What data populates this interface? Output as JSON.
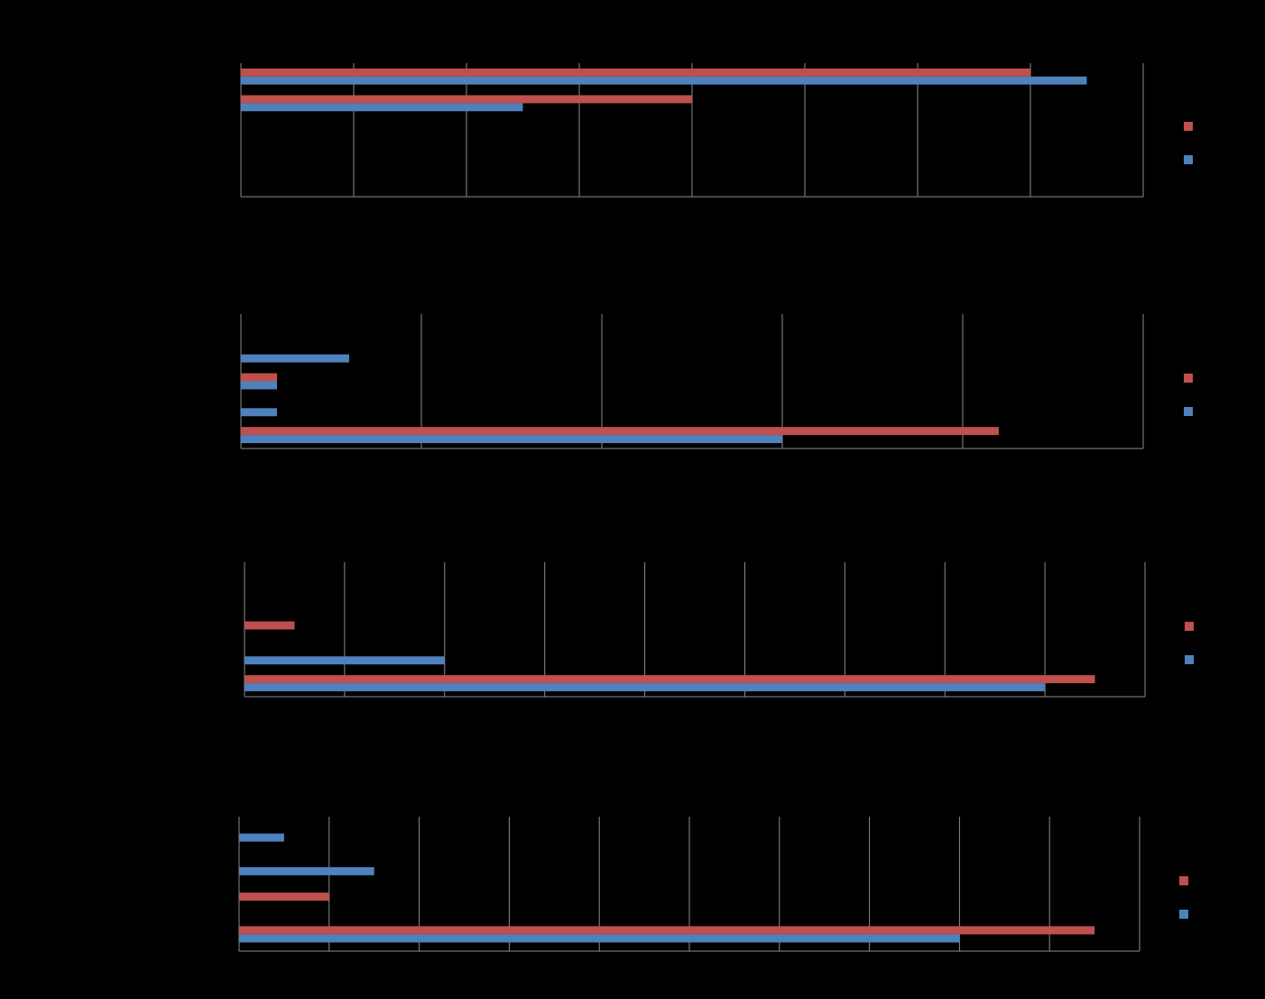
{
  "chart_data": [
    {
      "type": "barh",
      "categories": [
        null,
        null,
        null,
        null,
        null
      ],
      "grid": true,
      "xlim": [
        0,
        8
      ],
      "xticks": [
        0,
        1,
        2,
        3,
        4,
        5,
        6,
        7,
        8
      ],
      "series": [
        {
          "color": "#c0504d",
          "values": [
            7,
            4,
            0,
            0,
            0
          ]
        },
        {
          "color": "#4f81bd",
          "values": [
            7.5,
            2.5,
            0,
            0,
            0
          ]
        }
      ]
    },
    {
      "type": "barh",
      "categories": [
        null,
        null,
        null,
        null,
        null
      ],
      "grid": true,
      "xlim": [
        0,
        5
      ],
      "xticks": [
        0,
        1,
        2,
        3,
        4,
        5
      ],
      "series": [
        {
          "color": "#c0504d",
          "values": [
            0,
            0,
            0.2,
            0,
            4.2
          ]
        },
        {
          "color": "#4f81bd",
          "values": [
            0,
            0.6,
            0.2,
            0.2,
            3
          ]
        }
      ]
    },
    {
      "type": "barh",
      "categories": [
        null,
        null,
        null,
        null,
        null
      ],
      "grid": true,
      "xlim": [
        0,
        9
      ],
      "xticks": [
        0,
        1,
        2,
        3,
        4,
        5,
        6,
        7,
        8,
        9
      ],
      "series": [
        {
          "color": "#c0504d",
          "values": [
            0,
            0,
            0.5,
            0,
            8.5
          ]
        },
        {
          "color": "#4f81bd",
          "values": [
            0,
            0,
            0,
            2,
            8
          ]
        }
      ]
    },
    {
      "type": "barh",
      "categories": [
        null,
        null,
        null,
        null
      ],
      "grid": true,
      "xlim": [
        0,
        10
      ],
      "xticks": [
        0,
        1,
        2,
        3,
        4,
        5,
        6,
        7,
        8,
        9,
        10
      ],
      "series": [
        {
          "color": "#c0504d",
          "values": [
            0,
            0,
            1,
            9.5
          ]
        },
        {
          "color": "#4f81bd",
          "values": [
            0.5,
            1.5,
            0,
            8
          ]
        }
      ]
    }
  ]
}
